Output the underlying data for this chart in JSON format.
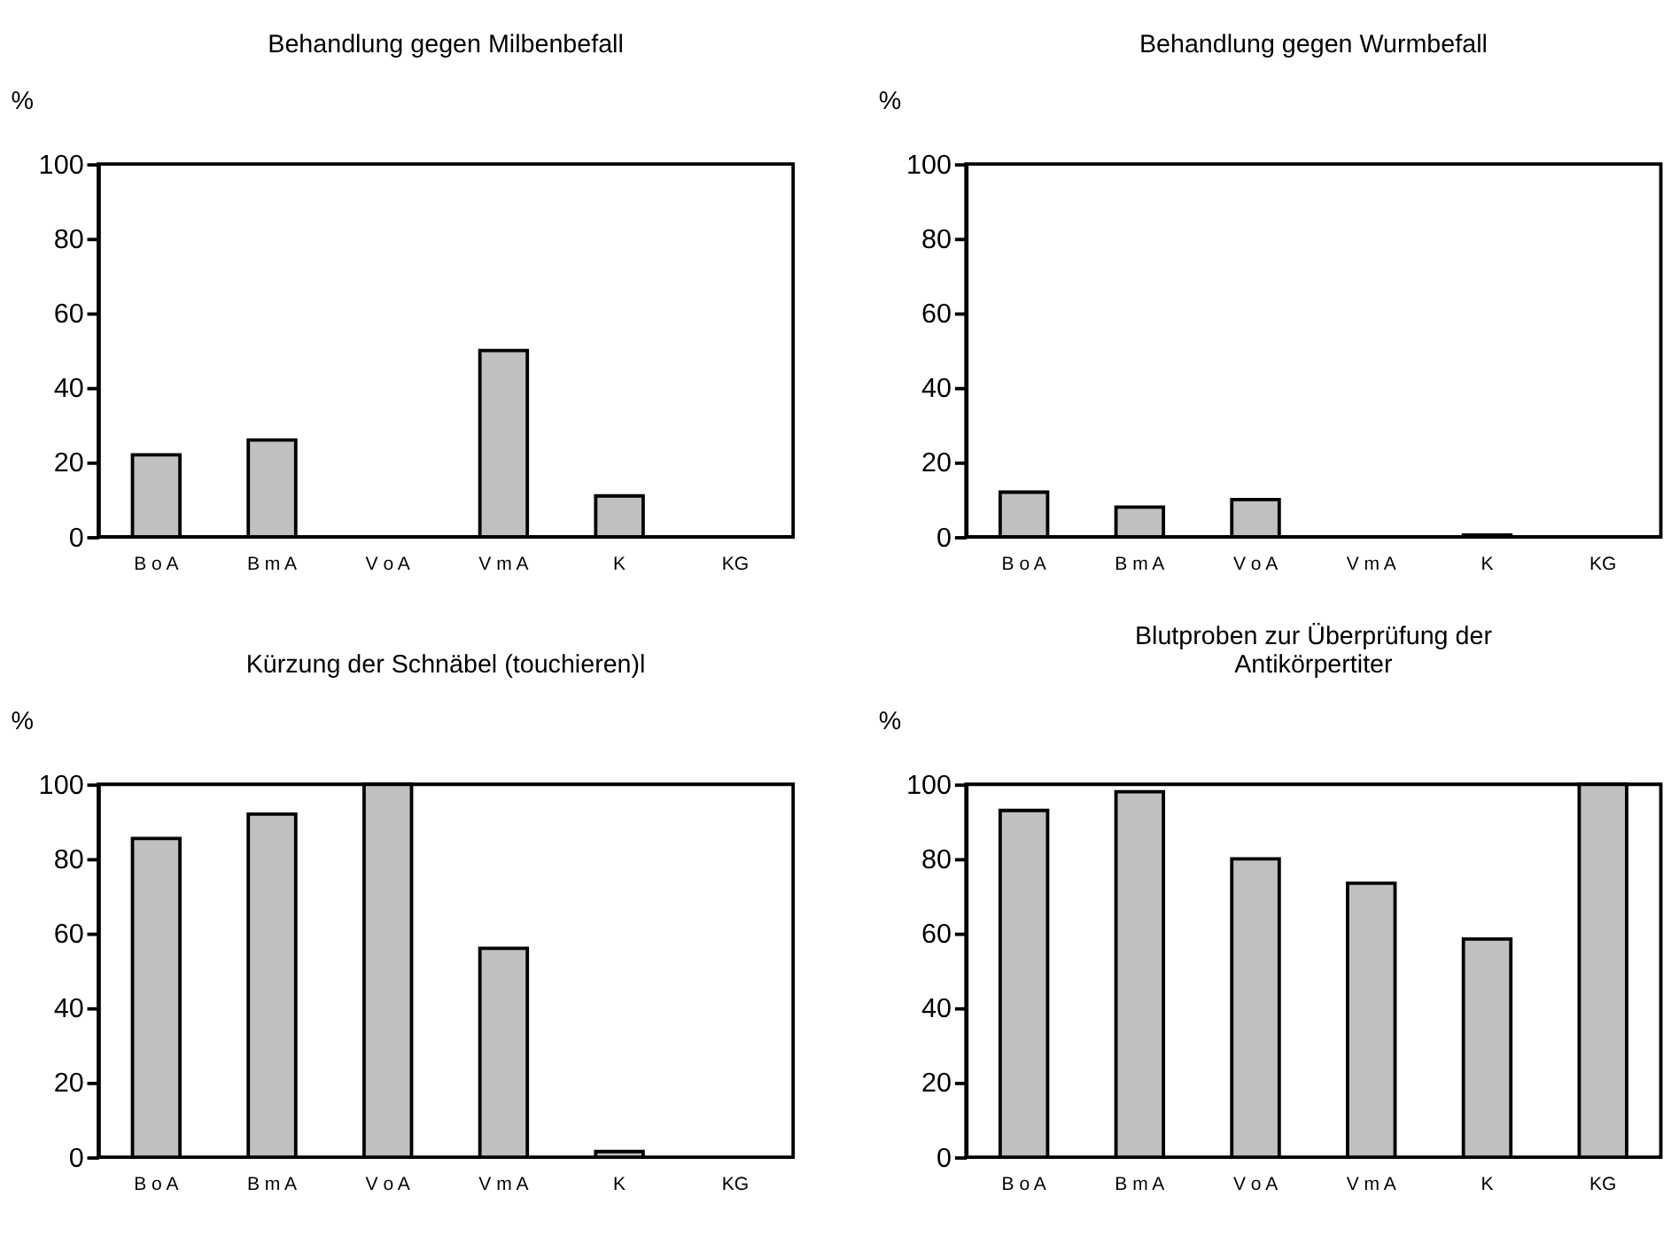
{
  "chart_data": [
    {
      "type": "bar",
      "title": "Behandlung gegen Milbenbefall",
      "ylabel": "%",
      "categories": [
        "B o A",
        "B m A",
        "V o A",
        "V m A",
        "K",
        "KG"
      ],
      "values": [
        22,
        26,
        0,
        50,
        11,
        0
      ],
      "color": "#c0c0c0",
      "ylim": [
        0,
        100
      ],
      "yticks": [
        0,
        20,
        40,
        60,
        80,
        100
      ],
      "grid": false
    },
    {
      "type": "bar",
      "title": "Behandlung gegen Wurmbefall",
      "ylabel": "%",
      "categories": [
        "B o A",
        "B m A",
        "V o A",
        "V m A",
        "K",
        "KG"
      ],
      "values": [
        12,
        8,
        10,
        0,
        0.5,
        0
      ],
      "color": "#c0c0c0",
      "ylim": [
        0,
        100
      ],
      "yticks": [
        0,
        20,
        40,
        60,
        80,
        100
      ],
      "grid": false
    },
    {
      "type": "bar",
      "title": "Kürzung der Schnäbel (touchieren)l",
      "ylabel": "%",
      "categories": [
        "B o A",
        "B m A",
        "V o A",
        "V m A",
        "K",
        "KG"
      ],
      "values": [
        85.5,
        92,
        100,
        56,
        1.5,
        0
      ],
      "color": "#c0c0c0",
      "ylim": [
        0,
        100
      ],
      "yticks": [
        0,
        20,
        40,
        60,
        80,
        100
      ],
      "grid": false
    },
    {
      "type": "bar",
      "title": "Blutproben zur Überprüfung der\nAntikörpertiter",
      "ylabel": "%",
      "categories": [
        "B o A",
        "B m A",
        "V o A",
        "V m A",
        "K",
        "KG"
      ],
      "values": [
        93,
        98,
        80,
        73.5,
        58.5,
        100
      ],
      "color": "#c0c0c0",
      "ylim": [
        0,
        100
      ],
      "yticks": [
        0,
        20,
        40,
        60,
        80,
        100
      ],
      "grid": false
    }
  ]
}
